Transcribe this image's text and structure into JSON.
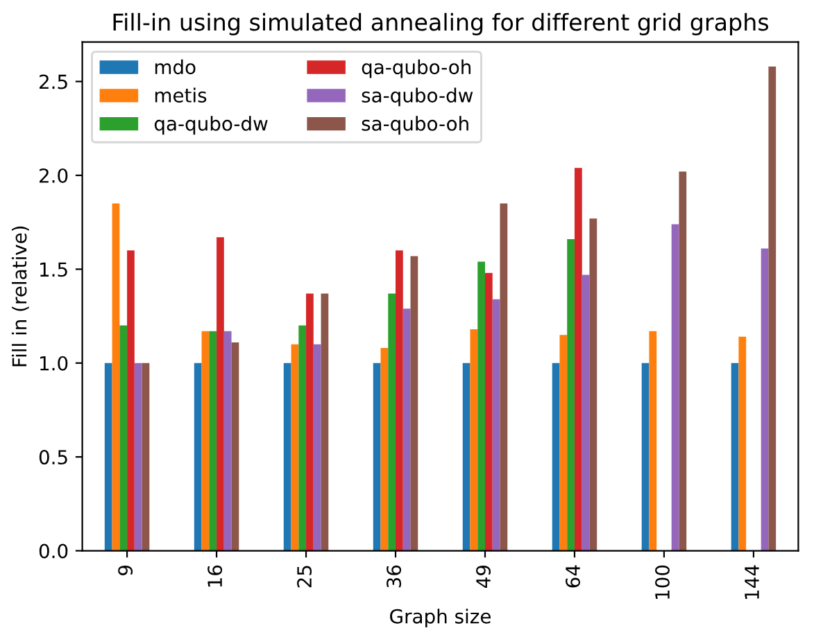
{
  "chart_data": {
    "type": "bar",
    "title": "Fill-in using simulated annealing for different grid graphs",
    "xlabel": "Graph size",
    "ylabel": "Fill in (relative)",
    "categories": [
      "9",
      "16",
      "25",
      "36",
      "49",
      "64",
      "100",
      "144"
    ],
    "series": [
      {
        "name": "mdo",
        "color": "#1f77b4",
        "values": [
          1.0,
          1.0,
          1.0,
          1.0,
          1.0,
          1.0,
          1.0,
          1.0
        ]
      },
      {
        "name": "metis",
        "color": "#ff7f0e",
        "values": [
          1.85,
          1.17,
          1.1,
          1.08,
          1.18,
          1.15,
          1.17,
          1.14
        ]
      },
      {
        "name": "qa-qubo-dw",
        "color": "#2ca02c",
        "values": [
          1.2,
          1.17,
          1.2,
          1.37,
          1.54,
          1.66,
          null,
          null
        ]
      },
      {
        "name": "qa-qubo-oh",
        "color": "#d62728",
        "values": [
          1.6,
          1.67,
          1.37,
          1.6,
          1.48,
          2.04,
          null,
          null
        ]
      },
      {
        "name": "sa-qubo-dw",
        "color": "#9467bd",
        "values": [
          1.0,
          1.17,
          1.1,
          1.29,
          1.34,
          1.47,
          1.74,
          1.61
        ]
      },
      {
        "name": "sa-qubo-oh",
        "color": "#8c564b",
        "values": [
          1.0,
          1.11,
          1.37,
          1.57,
          1.85,
          1.77,
          2.02,
          2.58
        ]
      }
    ],
    "ylim": [
      0,
      2.71
    ],
    "yticks": [
      {
        "value": 0,
        "label": "0.0"
      },
      {
        "value": 0.5,
        "label": "0.5"
      },
      {
        "value": 1,
        "label": "1.0"
      },
      {
        "value": 1.5,
        "label": "1.5"
      },
      {
        "value": 2,
        "label": "2.0"
      },
      {
        "value": 2.5,
        "label": "2.5"
      }
    ],
    "legend": "top left"
  }
}
